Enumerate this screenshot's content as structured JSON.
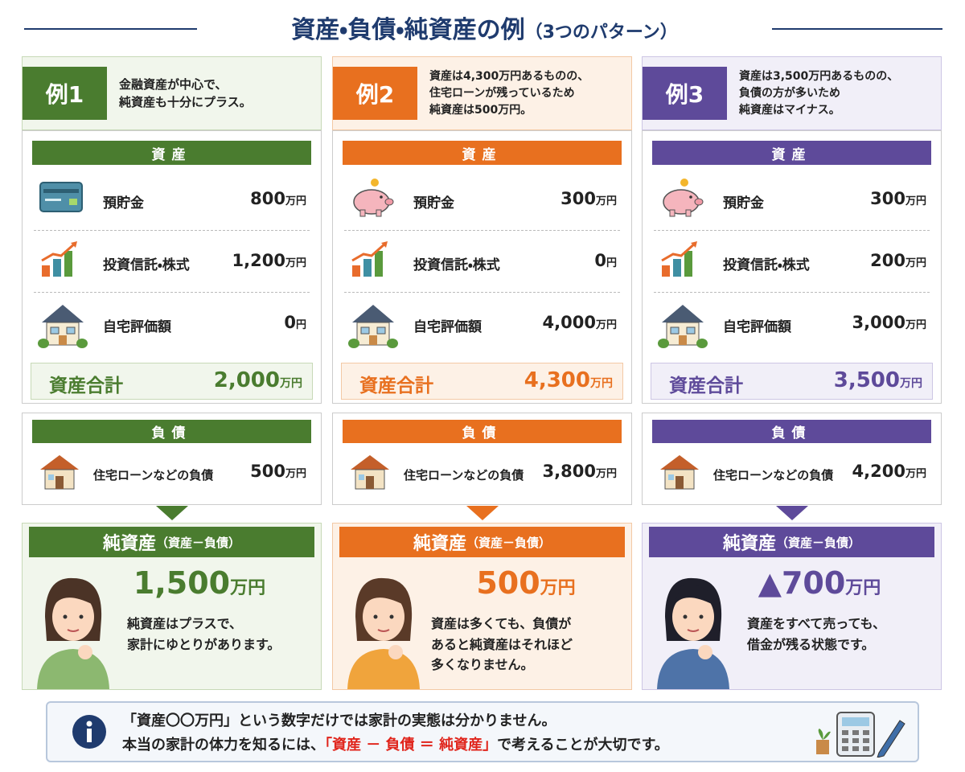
{
  "title": "資産・負債・純資産の例",
  "title_note": "（3つのパターン）",
  "examples": [
    {
      "label": "例1",
      "description": [
        "金融資産が中心で、",
        "純資産も十分にプラス。"
      ],
      "assets_heading": "資産",
      "assets": [
        {
          "name": "預貯金",
          "amount": "800",
          "unit": "万円"
        },
        {
          "name": "投資信託・株式",
          "amount": "1,200",
          "unit": "万円"
        },
        {
          "name": "自宅評価額",
          "amount": "0",
          "unit": "円"
        }
      ],
      "asset_total": {
        "label": "資産合計",
        "amount": "2,000",
        "unit": "万円"
      },
      "liabilities_heading": "負債",
      "liabilities": [
        {
          "name": "住宅ローンなどの負債",
          "amount": "500",
          "unit": "万円"
        }
      ],
      "net_heading": "純資産",
      "net_formula": "（資産－負債）",
      "net_amount": "1,500",
      "net_unit": "万円",
      "comment": [
        "純資産はプラスで、",
        "家計にゆとりがあります。"
      ]
    },
    {
      "label": "例2",
      "description": [
        "資産は4,300万円あるものの、",
        "住宅ローンが残っているため",
        "純資産は500万円。"
      ],
      "assets_heading": "資産",
      "assets": [
        {
          "name": "預貯金",
          "amount": "300",
          "unit": "万円"
        },
        {
          "name": "投資信託・株式",
          "amount": "0",
          "unit": "円"
        },
        {
          "name": "自宅評価額",
          "amount": "4,000",
          "unit": "万円"
        }
      ],
      "asset_total": {
        "label": "資産合計",
        "amount": "4,300",
        "unit": "万円"
      },
      "liabilities_heading": "負債",
      "liabilities": [
        {
          "name": "住宅ローンなどの負債",
          "amount": "3,800",
          "unit": "万円"
        }
      ],
      "net_heading": "純資産",
      "net_formula": "（資産－負債）",
      "net_amount": "500",
      "net_unit": "万円",
      "comment": [
        "資産は多くても、負債が",
        "あると純資産はそれほど",
        "多くなりません。"
      ]
    },
    {
      "label": "例3",
      "description": [
        "資産は3,500万円あるものの、",
        "負債の方が多いため",
        "純資産はマイナス。"
      ],
      "assets_heading": "資産",
      "assets": [
        {
          "name": "預貯金",
          "amount": "300",
          "unit": "万円"
        },
        {
          "name": "投資信託・株式",
          "amount": "200",
          "unit": "万円"
        },
        {
          "name": "自宅評価額",
          "amount": "3,000",
          "unit": "万円"
        }
      ],
      "asset_total": {
        "label": "資産合計",
        "amount": "3,500",
        "unit": "万円"
      },
      "liabilities_heading": "負債",
      "liabilities": [
        {
          "name": "住宅ローンなどの負債",
          "amount": "4,200",
          "unit": "万円"
        }
      ],
      "net_heading": "純資産",
      "net_formula": "（資産－負債）",
      "net_amount": "▲700",
      "net_unit": "万円",
      "comment": [
        "資産をすべて売っても、",
        "借金が残る状態です。"
      ]
    }
  ],
  "footer": {
    "line1": "「資産〇〇万円」という数字だけでは家計の実態は分かりません。",
    "line2_before": "本当の家計の体力を知るには、",
    "line2_highlight": "「資産 － 負債 ＝ 純資産」",
    "line2_after": "で考えることが大切です。"
  }
}
